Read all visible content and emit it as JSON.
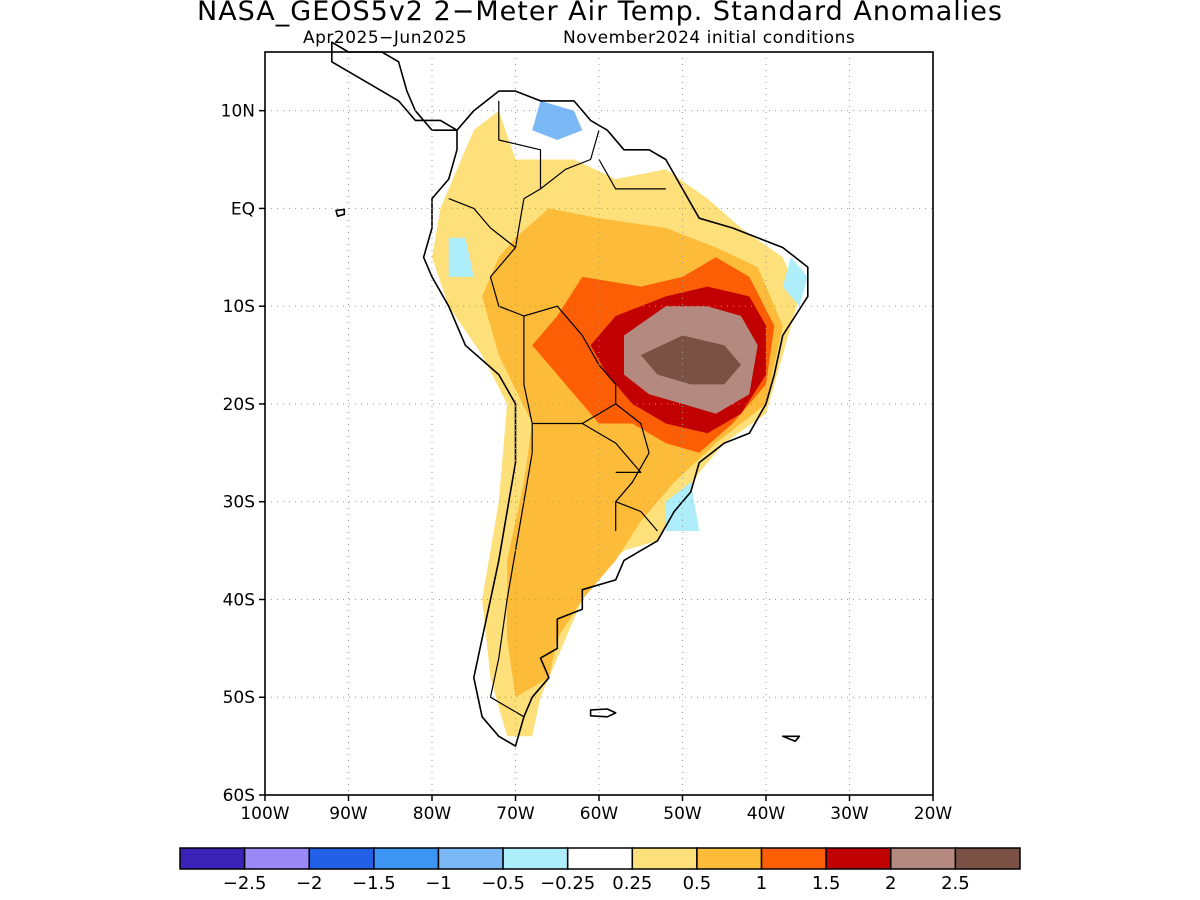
{
  "title": "NASA_GEOS5v2 2−Meter Air Temp. Standard Anomalies",
  "subtitle_left": "Apr2025−Jun2025",
  "subtitle_right": "November2024 initial conditions",
  "map": {
    "lon_range": [
      -100,
      -20
    ],
    "lat_range": [
      -60,
      16
    ],
    "lat_ticks": [
      {
        "value": 10,
        "label": "10N"
      },
      {
        "value": 0,
        "label": "EQ"
      },
      {
        "value": -10,
        "label": "10S"
      },
      {
        "value": -20,
        "label": "20S"
      },
      {
        "value": -30,
        "label": "30S"
      },
      {
        "value": -40,
        "label": "40S"
      },
      {
        "value": -50,
        "label": "50S"
      },
      {
        "value": -60,
        "label": "60S"
      }
    ],
    "lon_ticks": [
      {
        "value": -100,
        "label": "100W"
      },
      {
        "value": -90,
        "label": "90W"
      },
      {
        "value": -80,
        "label": "80W"
      },
      {
        "value": -70,
        "label": "70W"
      },
      {
        "value": -60,
        "label": "60W"
      },
      {
        "value": -50,
        "label": "50W"
      },
      {
        "value": -40,
        "label": "40W"
      },
      {
        "value": -30,
        "label": "30W"
      },
      {
        "value": -20,
        "label": "20W"
      }
    ],
    "grid": "dotted"
  },
  "colorbar": {
    "colors": [
      "#3a22b6",
      "#9a88f7",
      "#2260e8",
      "#3c95f2",
      "#7bb8f6",
      "#aeeefa",
      "#ffffff",
      "#fee07a",
      "#fcbb38",
      "#fb5e04",
      "#c10002",
      "#b48a80",
      "#7b5145"
    ],
    "labels": [
      "−2.5",
      "−2",
      "−1.5",
      "−1",
      "−0.5",
      "−0.25",
      "0.25",
      "0.5",
      "1",
      "1.5",
      "2",
      "2.5"
    ]
  },
  "anomaly_regions": [
    {
      "level": "0.5",
      "color": "#fee07a",
      "lonlat": [
        [
          -70,
          5
        ],
        [
          -63,
          5
        ],
        [
          -58,
          3
        ],
        [
          -52,
          4
        ],
        [
          -47,
          1
        ],
        [
          -43,
          -2
        ],
        [
          -38,
          -5
        ],
        [
          -36,
          -9
        ],
        [
          -38,
          -15
        ],
        [
          -40,
          -21
        ],
        [
          -45,
          -24
        ],
        [
          -48,
          -27
        ],
        [
          -50,
          -30
        ],
        [
          -53,
          -34
        ],
        [
          -57,
          -35
        ],
        [
          -61,
          -38
        ],
        [
          -63,
          -42
        ],
        [
          -65,
          -46
        ],
        [
          -67,
          -50
        ],
        [
          -68,
          -54
        ],
        [
          -71,
          -54
        ],
        [
          -73,
          -48
        ],
        [
          -74,
          -40
        ],
        [
          -72,
          -30
        ],
        [
          -71,
          -20
        ],
        [
          -74,
          -15
        ],
        [
          -78,
          -10
        ],
        [
          -80,
          -5
        ],
        [
          -79,
          0
        ],
        [
          -77,
          4
        ],
        [
          -75,
          8
        ],
        [
          -72,
          10
        ]
      ]
    },
    {
      "level": "1",
      "color": "#fcbb38",
      "lonlat": [
        [
          -66,
          0
        ],
        [
          -60,
          -1
        ],
        [
          -52,
          -2
        ],
        [
          -46,
          -4
        ],
        [
          -41,
          -6
        ],
        [
          -38,
          -12
        ],
        [
          -40,
          -20
        ],
        [
          -46,
          -24
        ],
        [
          -51,
          -28
        ],
        [
          -55,
          -32
        ],
        [
          -58,
          -36
        ],
        [
          -62,
          -40
        ],
        [
          -65,
          -44
        ],
        [
          -66,
          -48
        ],
        [
          -70,
          -50
        ],
        [
          -71,
          -44
        ],
        [
          -71,
          -36
        ],
        [
          -69,
          -28
        ],
        [
          -68,
          -22
        ],
        [
          -72,
          -15
        ],
        [
          -74,
          -9
        ],
        [
          -72,
          -5
        ],
        [
          -70,
          -3
        ]
      ]
    },
    {
      "level": "1.5",
      "color": "#fb5e04",
      "lonlat": [
        [
          -62,
          -7
        ],
        [
          -55,
          -8
        ],
        [
          -50,
          -7
        ],
        [
          -46,
          -5
        ],
        [
          -42,
          -7
        ],
        [
          -39,
          -12
        ],
        [
          -40,
          -18
        ],
        [
          -44,
          -22
        ],
        [
          -48,
          -25
        ],
        [
          -52,
          -24
        ],
        [
          -56,
          -22
        ],
        [
          -60,
          -22
        ],
        [
          -63,
          -19
        ],
        [
          -66,
          -16
        ],
        [
          -68,
          -14
        ],
        [
          -65,
          -11
        ]
      ]
    },
    {
      "level": "2",
      "color": "#c10002",
      "lonlat": [
        [
          -58,
          -11
        ],
        [
          -52,
          -9
        ],
        [
          -47,
          -8
        ],
        [
          -42,
          -9
        ],
        [
          -40,
          -12
        ],
        [
          -40,
          -17
        ],
        [
          -43,
          -21
        ],
        [
          -47,
          -23
        ],
        [
          -52,
          -22
        ],
        [
          -56,
          -20
        ],
        [
          -59,
          -17
        ],
        [
          -61,
          -14
        ]
      ]
    },
    {
      "level": "2.5",
      "color": "#b48a80",
      "lonlat": [
        [
          -57,
          -13
        ],
        [
          -52,
          -10
        ],
        [
          -47,
          -10
        ],
        [
          -43,
          -11
        ],
        [
          -41,
          -14
        ],
        [
          -42,
          -19
        ],
        [
          -46,
          -21
        ],
        [
          -50,
          -20
        ],
        [
          -54,
          -19
        ],
        [
          -57,
          -17
        ]
      ]
    },
    {
      "level": ">2.5",
      "color": "#7b5145",
      "lonlat": [
        [
          -55,
          -15
        ],
        [
          -50,
          -13
        ],
        [
          -45,
          -14
        ],
        [
          -43,
          -16
        ],
        [
          -45,
          -18
        ],
        [
          -49,
          -18
        ],
        [
          -53,
          -17
        ]
      ]
    },
    {
      "level": "-0.5",
      "color": "#7bb8f6",
      "lonlat": [
        [
          -67,
          11
        ],
        [
          -63,
          10
        ],
        [
          -62,
          8
        ],
        [
          -65,
          7
        ],
        [
          -68,
          8
        ]
      ]
    },
    {
      "level": "-0.25",
      "color": "#aeeefa",
      "lonlat": [
        [
          -78,
          -3
        ],
        [
          -76,
          -3
        ],
        [
          -75,
          -7
        ],
        [
          -78,
          -7
        ]
      ]
    },
    {
      "level": "-0.25",
      "color": "#aeeefa",
      "lonlat": [
        [
          -52,
          -30
        ],
        [
          -49,
          -28
        ],
        [
          -48,
          -33
        ],
        [
          -52,
          -33
        ]
      ]
    },
    {
      "level": "-0.25",
      "color": "#aeeefa",
      "lonlat": [
        [
          -37,
          -5
        ],
        [
          -35,
          -7
        ],
        [
          -36,
          -10
        ],
        [
          -38,
          -8
        ]
      ]
    }
  ],
  "coastlines": [
    {
      "name": "south-america",
      "lonlat": [
        [
          -77,
          8
        ],
        [
          -75,
          10
        ],
        [
          -72,
          12
        ],
        [
          -70,
          12
        ],
        [
          -67,
          11
        ],
        [
          -63,
          11
        ],
        [
          -61,
          9
        ],
        [
          -59,
          8
        ],
        [
          -57,
          6
        ],
        [
          -54,
          6
        ],
        [
          -52,
          5
        ],
        [
          -50,
          2
        ],
        [
          -48,
          -1
        ],
        [
          -44,
          -2
        ],
        [
          -41,
          -3
        ],
        [
          -38,
          -4
        ],
        [
          -35,
          -6
        ],
        [
          -35,
          -9
        ],
        [
          -38,
          -13
        ],
        [
          -39,
          -17
        ],
        [
          -40,
          -20
        ],
        [
          -42,
          -23
        ],
        [
          -45,
          -24
        ],
        [
          -48,
          -26
        ],
        [
          -49,
          -29
        ],
        [
          -51,
          -31
        ],
        [
          -53,
          -34
        ],
        [
          -55,
          -35
        ],
        [
          -57,
          -36
        ],
        [
          -58,
          -38
        ],
        [
          -62,
          -39
        ],
        [
          -62,
          -41
        ],
        [
          -65,
          -42
        ],
        [
          -65,
          -45
        ],
        [
          -67,
          -46
        ],
        [
          -66,
          -48
        ],
        [
          -68,
          -50
        ],
        [
          -69,
          -52
        ],
        [
          -70,
          -55
        ],
        [
          -72,
          -54
        ],
        [
          -74,
          -52
        ],
        [
          -75,
          -48
        ],
        [
          -74,
          -44
        ],
        [
          -73,
          -40
        ],
        [
          -72,
          -36
        ],
        [
          -71,
          -31
        ],
        [
          -70,
          -26
        ],
        [
          -70,
          -20
        ],
        [
          -72,
          -17
        ],
        [
          -76,
          -14
        ],
        [
          -78,
          -10
        ],
        [
          -80,
          -7
        ],
        [
          -81,
          -5
        ],
        [
          -80,
          -2
        ],
        [
          -80,
          1
        ],
        [
          -78,
          3
        ],
        [
          -77,
          6
        ]
      ]
    },
    {
      "name": "central-america",
      "lonlat": [
        [
          -77,
          8
        ],
        [
          -79,
          9
        ],
        [
          -82,
          9
        ],
        [
          -84,
          11
        ],
        [
          -86,
          12
        ],
        [
          -88,
          13
        ],
        [
          -90,
          14
        ],
        [
          -92,
          15
        ],
        [
          -92,
          17
        ],
        [
          -90,
          16
        ],
        [
          -88,
          16
        ],
        [
          -86,
          16
        ],
        [
          -84,
          15
        ],
        [
          -83,
          12
        ],
        [
          -82,
          10
        ],
        [
          -80,
          8
        ],
        [
          -78,
          8
        ]
      ]
    },
    {
      "name": "falkland-islands",
      "lonlat": [
        [
          -61,
          -51.3
        ],
        [
          -59,
          -51.2
        ],
        [
          -58,
          -51.6
        ],
        [
          -59,
          -52
        ],
        [
          -61,
          -51.9
        ]
      ]
    },
    {
      "name": "south-georgia",
      "lonlat": [
        [
          -38,
          -54
        ],
        [
          -36,
          -54
        ],
        [
          -36.5,
          -54.5
        ]
      ]
    },
    {
      "name": "galapagos",
      "lonlat": [
        [
          -91.5,
          -0.2
        ],
        [
          -90.5,
          -0.1
        ],
        [
          -90.5,
          -0.6
        ],
        [
          -91.3,
          -0.8
        ]
      ]
    }
  ],
  "borders": [
    {
      "name": "colombia-venezuela",
      "lonlat": [
        [
          -72,
          11
        ],
        [
          -72,
          7
        ],
        [
          -67,
          6
        ],
        [
          -67,
          2
        ],
        [
          -69,
          1
        ]
      ]
    },
    {
      "name": "colombia-peru",
      "lonlat": [
        [
          -69,
          1
        ],
        [
          -70,
          -4
        ],
        [
          -73,
          -2
        ],
        [
          -75,
          0
        ],
        [
          -78,
          1
        ]
      ]
    },
    {
      "name": "peru-brazil",
      "lonlat": [
        [
          -70,
          -4
        ],
        [
          -73,
          -7
        ],
        [
          -72,
          -10
        ],
        [
          -69,
          -11
        ]
      ]
    },
    {
      "name": "bolivia-brazil",
      "lonlat": [
        [
          -69,
          -11
        ],
        [
          -65,
          -10
        ],
        [
          -62,
          -13
        ],
        [
          -60,
          -16
        ],
        [
          -58,
          -18
        ],
        [
          -58,
          -20
        ]
      ]
    },
    {
      "name": "bolivia-peru-chile",
      "lonlat": [
        [
          -69,
          -11
        ],
        [
          -69,
          -15
        ],
        [
          -69,
          -18
        ],
        [
          -68,
          -22
        ],
        [
          -68,
          -25
        ]
      ]
    },
    {
      "name": "bolivia-paraguay-argentina",
      "lonlat": [
        [
          -68,
          -22
        ],
        [
          -65,
          -22
        ],
        [
          -62,
          -22
        ],
        [
          -58,
          -20
        ]
      ]
    },
    {
      "name": "paraguay-argentina",
      "lonlat": [
        [
          -62,
          -22
        ],
        [
          -58,
          -24
        ],
        [
          -55,
          -27
        ],
        [
          -58,
          -27
        ]
      ]
    },
    {
      "name": "brazil-paraguay",
      "lonlat": [
        [
          -58,
          -20
        ],
        [
          -55,
          -22
        ],
        [
          -54,
          -25
        ]
      ]
    },
    {
      "name": "argentina-uruguay-brazil",
      "lonlat": [
        [
          -54,
          -25
        ],
        [
          -56,
          -28
        ],
        [
          -58,
          -30
        ],
        [
          -58,
          -33
        ]
      ]
    },
    {
      "name": "uruguay-brazil",
      "lonlat": [
        [
          -58,
          -30
        ],
        [
          -55,
          -31
        ],
        [
          -53,
          -33
        ]
      ]
    },
    {
      "name": "chile-argentina",
      "lonlat": [
        [
          -68,
          -25
        ],
        [
          -69,
          -30
        ],
        [
          -70,
          -35
        ],
        [
          -71,
          -40
        ],
        [
          -72,
          -46
        ],
        [
          -73,
          -50
        ],
        [
          -69,
          -52
        ]
      ]
    },
    {
      "name": "venezuela-guyana-brazil",
      "lonlat": [
        [
          -60,
          8
        ],
        [
          -61,
          5
        ],
        [
          -64,
          4
        ],
        [
          -67,
          2
        ]
      ]
    },
    {
      "name": "guianas-brazil",
      "lonlat": [
        [
          -60,
          5
        ],
        [
          -58,
          2
        ],
        [
          -55,
          2
        ],
        [
          -52,
          2
        ]
      ]
    }
  ]
}
